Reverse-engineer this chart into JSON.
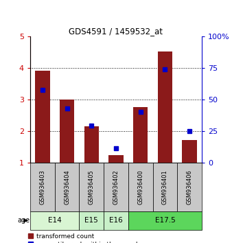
{
  "title": "GDS4591 / 1459532_at",
  "samples": [
    "GSM936403",
    "GSM936404",
    "GSM936405",
    "GSM936402",
    "GSM936400",
    "GSM936401",
    "GSM936406"
  ],
  "red_values": [
    3.92,
    3.0,
    2.15,
    1.25,
    2.77,
    4.52,
    1.73
  ],
  "blue_values": [
    3.3,
    2.73,
    2.17,
    1.45,
    2.62,
    3.97,
    2.0
  ],
  "age_groups": [
    {
      "label": "E14",
      "start": 0,
      "end": 2,
      "color": "#d9f5d3"
    },
    {
      "label": "E15",
      "start": 2,
      "end": 3,
      "color": "#c8f0c8"
    },
    {
      "label": "E16",
      "start": 3,
      "end": 4,
      "color": "#c8f0c8"
    },
    {
      "label": "E17.5",
      "start": 4,
      "end": 7,
      "color": "#5cd65c"
    }
  ],
  "ylim_left": [
    1,
    5
  ],
  "ylim_right": [
    0,
    100
  ],
  "yticks_left": [
    1,
    2,
    3,
    4,
    5
  ],
  "yticks_right": [
    0,
    25,
    50,
    75,
    100
  ],
  "bar_color": "#8b1a1a",
  "blue_color": "#0000cc",
  "bg_color": "#ffffff",
  "sample_bg": "#c8c8c8",
  "left_tick_color": "#cc0000",
  "right_tick_color": "#0000cc"
}
